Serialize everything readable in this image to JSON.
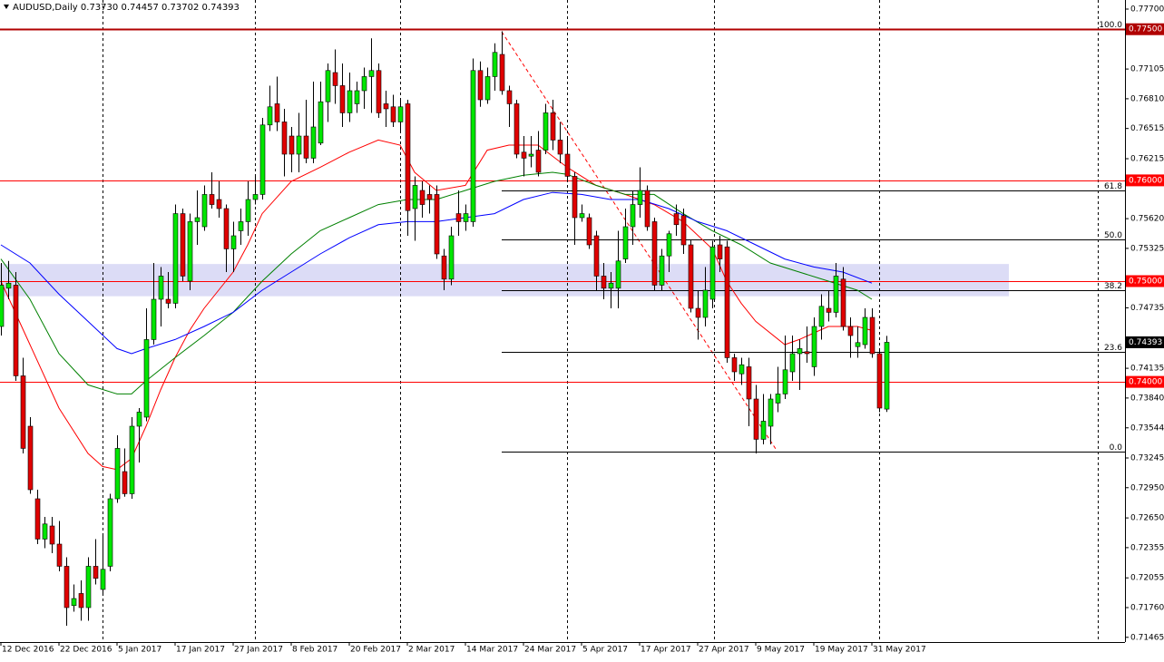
{
  "chart_data": {
    "type": "candlestick",
    "title": "AUDUSD,Daily",
    "header_ohlc": [
      "0.73730",
      "0.74457",
      "0.73702",
      "0.74393"
    ],
    "categories": [
      "12 Dec 2016",
      null,
      null,
      null,
      null,
      null,
      null,
      null,
      "22 Dec 2016",
      null,
      null,
      null,
      null,
      null,
      null,
      null,
      "5 Jan 2017",
      null,
      null,
      null,
      null,
      null,
      null,
      null,
      "17 Jan 2017",
      null,
      null,
      null,
      null,
      null,
      null,
      null,
      "27 Jan 2017",
      null,
      null,
      null,
      null,
      null,
      null,
      null,
      "8 Feb 2017",
      null,
      null,
      null,
      null,
      null,
      null,
      null,
      "20 Feb 2017",
      null,
      null,
      null,
      null,
      null,
      null,
      null,
      "2 Mar 2017",
      null,
      null,
      null,
      null,
      null,
      null,
      null,
      "14 Mar 2017",
      null,
      null,
      null,
      null,
      null,
      null,
      null,
      "24 Mar 2017",
      null,
      null,
      null,
      null,
      null,
      null,
      null,
      "5 Apr 2017",
      null,
      null,
      null,
      null,
      null,
      null,
      null,
      "17 Apr 2017",
      null,
      null,
      null,
      null,
      null,
      null,
      null,
      "27 Apr 2017",
      null,
      null,
      null,
      null,
      null,
      null,
      null,
      "9 May 2017",
      null,
      null,
      null,
      null,
      null,
      null,
      null,
      "19 May 2017",
      null,
      null,
      null,
      null,
      null,
      null,
      null,
      "31 May 2017",
      null,
      null
    ],
    "open": [
      0.7455,
      0.7493,
      0.7496,
      0.7406,
      0.7356,
      0.7284,
      0.7244,
      0.7257,
      0.7239,
      0.7217,
      0.7178,
      0.719,
      0.7176,
      0.7217,
      0.7194,
      0.7217,
      0.7284,
      0.7311,
      0.7289,
      0.7356,
      0.7365,
      0.7442,
      0.7482,
      0.7482,
      0.7478,
      0.7567,
      0.75,
      0.7559,
      0.7554,
      0.7586,
      0.7581,
      0.7572,
      0.7532,
      0.755,
      0.7559,
      0.7581,
      0.7586,
      0.7655,
      0.7676,
      0.7658,
      0.7644,
      0.7626,
      0.7644,
      0.7622,
      0.7637,
      0.7678,
      0.7707,
      0.7694,
      0.7667,
      0.7676,
      0.7689,
      0.7703,
      0.7709,
      0.7676,
      0.7673,
      0.7658,
      0.7676,
      0.7572,
      0.759,
      0.7586,
      0.7586,
      0.7525,
      0.7502,
      0.7567,
      0.7559,
      0.7559,
      0.7709,
      0.768,
      0.7703,
      0.7725,
      0.7689,
      0.7676,
      0.7628,
      0.7624,
      0.763,
      0.763,
      0.7667,
      0.764,
      0.7626,
      0.7604,
      0.7563,
      0.7563,
      0.7545,
      0.7505,
      0.7493,
      0.7493,
      0.7522,
      0.7554,
      0.7576,
      0.759,
      0.7559,
      0.7496,
      0.7525,
      0.7567,
      0.7565,
      0.7536,
      0.7473,
      0.7464,
      0.7482,
      0.7536,
      0.7534,
      0.7424,
      0.7408,
      0.7415,
      0.7383,
      0.7343,
      0.7356,
      0.7379,
      0.7388,
      0.741,
      0.7428,
      0.743,
      0.7415,
      0.7455,
      0.7473,
      0.7469,
      0.7502,
      0.7455,
      0.7435,
      0.7437,
      0.7464,
      0.7428,
      0.7373
    ],
    "high": [
      0.7518,
      0.752,
      0.7509,
      0.7424,
      0.7365,
      0.7293,
      0.7266,
      0.7266,
      0.7262,
      0.7226,
      0.7199,
      0.7203,
      0.7226,
      0.7244,
      0.7248,
      0.7289,
      0.7347,
      0.7334,
      0.7365,
      0.7374,
      0.7473,
      0.7518,
      0.7514,
      0.7509,
      0.7576,
      0.7572,
      0.7567,
      0.759,
      0.7595,
      0.7608,
      0.7599,
      0.7576,
      0.7559,
      0.7572,
      0.7599,
      0.7604,
      0.7662,
      0.7694,
      0.7703,
      0.7671,
      0.7653,
      0.7667,
      0.768,
      0.7698,
      0.7698,
      0.7716,
      0.773,
      0.7716,
      0.7707,
      0.7698,
      0.7712,
      0.7741,
      0.7716,
      0.7689,
      0.7685,
      0.768,
      0.768,
      0.7604,
      0.7599,
      0.7595,
      0.7595,
      0.7532,
      0.7554,
      0.759,
      0.7576,
      0.7721,
      0.7718,
      0.7712,
      0.7736,
      0.7748,
      0.7694,
      0.768,
      0.7644,
      0.7644,
      0.7649,
      0.7676,
      0.768,
      0.7658,
      0.7644,
      0.7608,
      0.7576,
      0.7567,
      0.755,
      0.7518,
      0.7509,
      0.755,
      0.7572,
      0.759,
      0.7613,
      0.7595,
      0.7563,
      0.7532,
      0.755,
      0.7576,
      0.7572,
      0.7541,
      0.7491,
      0.7514,
      0.754,
      0.7545,
      0.754,
      0.7428,
      0.7424,
      0.7424,
      0.7397,
      0.7388,
      0.7388,
      0.7415,
      0.7446,
      0.7446,
      0.7442,
      0.7455,
      0.7464,
      0.7487,
      0.7491,
      0.7518,
      0.7514,
      0.7464,
      0.7455,
      0.7473,
      0.7473,
      0.7433,
      0.74457
    ],
    "low": [
      0.7446,
      0.7482,
      0.7401,
      0.7329,
      0.7289,
      0.7239,
      0.7235,
      0.723,
      0.7212,
      0.7158,
      0.7172,
      0.7163,
      0.7163,
      0.7199,
      0.719,
      0.7212,
      0.728,
      0.7286,
      0.7284,
      0.732,
      0.7361,
      0.7437,
      0.7455,
      0.7473,
      0.7473,
      0.75,
      0.7491,
      0.7536,
      0.755,
      0.7572,
      0.7563,
      0.7509,
      0.7509,
      0.7536,
      0.7545,
      0.7576,
      0.7581,
      0.7649,
      0.7649,
      0.7604,
      0.7608,
      0.7608,
      0.7617,
      0.7617,
      0.7635,
      0.7658,
      0.7676,
      0.7653,
      0.7658,
      0.7667,
      0.7671,
      0.7667,
      0.7662,
      0.7653,
      0.7653,
      0.7649,
      0.7545,
      0.754,
      0.7563,
      0.7567,
      0.7522,
      0.7491,
      0.7496,
      0.7545,
      0.755,
      0.7554,
      0.7673,
      0.7676,
      0.7689,
      0.7685,
      0.7653,
      0.7622,
      0.7604,
      0.7613,
      0.7604,
      0.7626,
      0.763,
      0.7617,
      0.7599,
      0.7536,
      0.7559,
      0.7532,
      0.7491,
      0.7482,
      0.7473,
      0.7473,
      0.7518,
      0.7536,
      0.7563,
      0.755,
      0.7491,
      0.7491,
      0.7509,
      0.7545,
      0.7527,
      0.7469,
      0.7442,
      0.7455,
      0.7473,
      0.7509,
      0.7419,
      0.7401,
      0.7397,
      0.7356,
      0.7329,
      0.7338,
      0.7338,
      0.737,
      0.7383,
      0.7401,
      0.7392,
      0.7419,
      0.7406,
      0.7442,
      0.746,
      0.7464,
      0.7451,
      0.7424,
      0.7424,
      0.7433,
      0.7424,
      0.737,
      0.73702
    ],
    "close": [
      0.7496,
      0.7498,
      0.7406,
      0.7334,
      0.7293,
      0.7244,
      0.7259,
      0.7239,
      0.7217,
      0.7176,
      0.7185,
      0.7176,
      0.7217,
      0.7205,
      0.7214,
      0.7284,
      0.7334,
      0.7289,
      0.7356,
      0.737,
      0.7442,
      0.7482,
      0.7505,
      0.7478,
      0.7567,
      0.7505,
      0.7559,
      0.7563,
      0.7586,
      0.7576,
      0.7572,
      0.7532,
      0.7545,
      0.7559,
      0.7581,
      0.7586,
      0.7655,
      0.7673,
      0.7658,
      0.7626,
      0.7626,
      0.7644,
      0.7622,
      0.7653,
      0.7678,
      0.7709,
      0.7694,
      0.7667,
      0.7689,
      0.7689,
      0.7703,
      0.7709,
      0.7667,
      0.7671,
      0.7658,
      0.7673,
      0.757,
      0.7595,
      0.7576,
      0.7581,
      0.7527,
      0.7502,
      0.7545,
      0.7559,
      0.7567,
      0.7709,
      0.768,
      0.7703,
      0.7727,
      0.7689,
      0.7676,
      0.7626,
      0.7622,
      0.7626,
      0.7608,
      0.7667,
      0.764,
      0.7626,
      0.7604,
      0.7563,
      0.7567,
      0.7536,
      0.7505,
      0.7493,
      0.7498,
      0.752,
      0.7554,
      0.7576,
      0.759,
      0.7554,
      0.7496,
      0.7525,
      0.7547,
      0.7556,
      0.7536,
      0.7473,
      0.7464,
      0.7491,
      0.7534,
      0.7522,
      0.7424,
      0.741,
      0.7417,
      0.7383,
      0.7343,
      0.7361,
      0.7383,
      0.7388,
      0.7412,
      0.7428,
      0.7433,
      0.7428,
      0.7455,
      0.7475,
      0.7469,
      0.7505,
      0.7455,
      0.7446,
      0.7439,
      0.7464,
      0.7428,
      0.7374,
      0.74393
    ],
    "up_color": "#00e600",
    "down_color": "#e00000",
    "last_close_label": "0.74393",
    "series": [
      {
        "color": "#ff0000",
        "x": [
          0,
          4,
          8,
          12,
          14,
          16,
          18,
          20,
          22,
          24,
          26,
          28,
          30,
          32,
          34,
          36,
          40,
          44,
          48,
          52,
          55,
          57,
          60,
          64,
          67,
          70,
          74,
          78,
          82,
          86,
          90,
          94,
          98,
          100,
          102,
          104,
          108,
          110,
          114,
          118,
          120
        ],
        "values": [
          0.75,
          0.7437,
          0.7374,
          0.7329,
          0.7316,
          0.7313,
          0.7324,
          0.7356,
          0.7392,
          0.7424,
          0.7451,
          0.7473,
          0.7491,
          0.7509,
          0.7536,
          0.7567,
          0.7599,
          0.7613,
          0.7628,
          0.764,
          0.7635,
          0.7608,
          0.759,
          0.7595,
          0.763,
          0.7635,
          0.7635,
          0.7613,
          0.7595,
          0.7586,
          0.7576,
          0.7559,
          0.7532,
          0.75,
          0.7478,
          0.746,
          0.7437,
          0.7442,
          0.7455,
          0.7455,
          0.7451
        ]
      },
      {
        "color": "#008000",
        "x": [
          0,
          4,
          8,
          12,
          16,
          18,
          20,
          24,
          28,
          32,
          36,
          40,
          44,
          48,
          52,
          56,
          60,
          64,
          68,
          72,
          76,
          78,
          82,
          86,
          90,
          94,
          98,
          102,
          106,
          110,
          114,
          118,
          120
        ],
        "values": [
          0.7522,
          0.7482,
          0.7428,
          0.7397,
          0.7388,
          0.7388,
          0.7401,
          0.7424,
          0.7446,
          0.7469,
          0.75,
          0.7527,
          0.755,
          0.7563,
          0.7576,
          0.7581,
          0.7581,
          0.759,
          0.7599,
          0.7605,
          0.7608,
          0.7606,
          0.7595,
          0.7586,
          0.7586,
          0.7567,
          0.755,
          0.7536,
          0.7518,
          0.7509,
          0.75,
          0.7491,
          0.7482
        ]
      },
      {
        "color": "#0000ff",
        "x": [
          0,
          4,
          8,
          12,
          16,
          18,
          20,
          24,
          28,
          32,
          36,
          40,
          44,
          48,
          52,
          56,
          60,
          64,
          68,
          72,
          76,
          80,
          84,
          88,
          92,
          96,
          100,
          104,
          108,
          112,
          116,
          120
        ],
        "values": [
          0.7536,
          0.7518,
          0.7487,
          0.746,
          0.7433,
          0.7428,
          0.7433,
          0.7442,
          0.7455,
          0.7469,
          0.7491,
          0.7509,
          0.7527,
          0.7543,
          0.7556,
          0.7559,
          0.7559,
          0.7563,
          0.7567,
          0.7581,
          0.7588,
          0.7586,
          0.7581,
          0.7581,
          0.7572,
          0.7559,
          0.755,
          0.7536,
          0.7522,
          0.7514,
          0.7509,
          0.7498
        ]
      }
    ],
    "levels": [
      {
        "value": 0.775,
        "label": "0.77500",
        "color": "#b00000"
      },
      {
        "value": 0.76,
        "label": "0.76000",
        "color": "#ff0000"
      },
      {
        "value": 0.75,
        "label": "0.75000",
        "color": "#ff0000"
      },
      {
        "value": 0.74,
        "label": "0.74000",
        "color": "#ff0000"
      }
    ],
    "fibonacci": [
      {
        "value": 0.775,
        "label": "100.0"
      },
      {
        "value": 0.759,
        "label": "61.8"
      },
      {
        "value": 0.7541,
        "label": "50.0"
      },
      {
        "value": 0.7491,
        "label": "38.2"
      },
      {
        "value": 0.743,
        "label": "23.6"
      },
      {
        "value": 0.7331,
        "label": "0.0"
      }
    ],
    "zone": [
      0.7485,
      0.7517
    ],
    "ylim": [
      0.71418,
      0.7779
    ],
    "yticks": [
      {
        "value": 0.777,
        "label": "0.77700"
      },
      {
        "value": 0.77105,
        "label": "0.77105"
      },
      {
        "value": 0.7681,
        "label": "0.76810"
      },
      {
        "value": 0.76515,
        "label": "0.76515"
      },
      {
        "value": 0.76215,
        "label": "0.76215"
      },
      {
        "value": 0.7562,
        "label": "0.75620"
      },
      {
        "value": 0.75325,
        "label": "0.75325"
      },
      {
        "value": 0.74735,
        "label": "0.74735"
      },
      {
        "value": 0.74135,
        "label": "0.74135"
      },
      {
        "value": 0.7384,
        "label": "0.73840"
      },
      {
        "value": 0.73544,
        "label": "0.73544"
      },
      {
        "value": 0.73245,
        "label": "0.73245"
      },
      {
        "value": 0.7295,
        "label": "0.72950"
      },
      {
        "value": 0.7265,
        "label": "0.72650"
      },
      {
        "value": 0.72355,
        "label": "0.72355"
      },
      {
        "value": 0.72055,
        "label": "0.72055"
      },
      {
        "value": 0.7176,
        "label": "0.71760"
      },
      {
        "value": 0.71465,
        "label": "0.71465"
      }
    ]
  }
}
